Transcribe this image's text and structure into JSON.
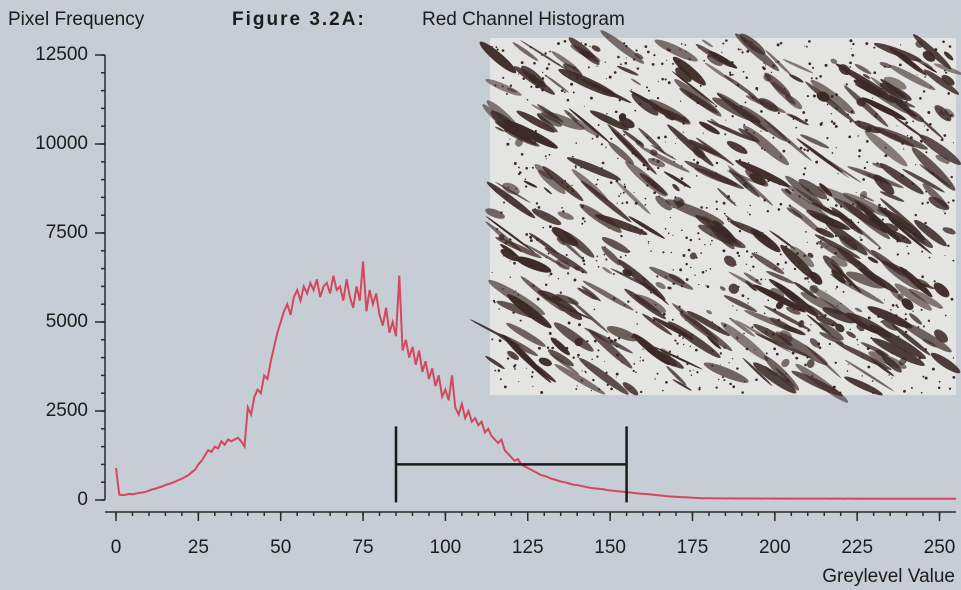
{
  "chart_data": {
    "type": "line",
    "figure_label": "Figure 3.2A:",
    "title": "Red Channel Histogram",
    "ylabel": "Pixel Frequency",
    "xlabel": "Greylevel Value",
    "x": [
      0,
      1,
      2,
      3,
      4,
      5,
      6,
      7,
      8,
      9,
      10,
      11,
      12,
      13,
      14,
      15,
      16,
      17,
      18,
      19,
      20,
      21,
      22,
      23,
      24,
      25,
      26,
      27,
      28,
      29,
      30,
      31,
      32,
      33,
      34,
      35,
      36,
      37,
      38,
      39,
      40,
      41,
      42,
      43,
      44,
      45,
      46,
      47,
      48,
      49,
      50,
      51,
      52,
      53,
      54,
      55,
      56,
      57,
      58,
      59,
      60,
      61,
      62,
      63,
      64,
      65,
      66,
      67,
      68,
      69,
      70,
      71,
      72,
      73,
      74,
      75,
      76,
      77,
      78,
      79,
      80,
      81,
      82,
      83,
      84,
      85,
      86,
      87,
      88,
      89,
      90,
      91,
      92,
      93,
      94,
      95,
      96,
      97,
      98,
      99,
      100,
      101,
      102,
      103,
      104,
      105,
      106,
      107,
      108,
      109,
      110,
      111,
      112,
      113,
      114,
      115,
      116,
      117,
      118,
      119,
      120,
      121,
      122,
      123,
      124,
      125,
      126,
      127,
      128,
      129,
      130,
      131,
      132,
      133,
      134,
      135,
      136,
      137,
      138,
      139,
      140,
      141,
      142,
      143,
      144,
      145,
      146,
      147,
      148,
      149,
      150,
      151,
      152,
      153,
      154,
      155,
      156,
      157,
      158,
      159,
      160,
      161,
      162,
      163,
      164,
      165,
      166,
      167,
      168,
      169,
      170,
      171,
      172,
      173,
      174,
      175,
      176,
      177,
      178,
      179,
      180,
      181,
      182,
      183,
      184,
      185,
      186,
      187,
      188,
      189,
      190,
      191,
      192,
      193,
      194,
      195,
      196,
      197,
      198,
      199,
      200,
      201,
      202,
      203,
      204,
      205,
      206,
      207,
      208,
      209,
      210,
      211,
      212,
      213,
      214,
      215,
      216,
      217,
      218,
      219,
      220,
      221,
      222,
      223,
      224,
      225,
      226,
      227,
      228,
      229,
      230,
      231,
      232,
      233,
      234,
      235,
      236,
      237,
      238,
      239,
      240,
      241,
      242,
      243,
      244,
      245,
      246,
      247,
      248,
      249,
      250,
      251,
      252,
      253,
      254,
      255
    ],
    "series": [
      {
        "color": "#d4485e",
        "values": [
          900,
          150,
          140,
          150,
          170,
          160,
          180,
          200,
          210,
          230,
          260,
          300,
          320,
          350,
          380,
          420,
          450,
          480,
          520,
          560,
          600,
          650,
          700,
          780,
          850,
          1000,
          1100,
          1250,
          1400,
          1350,
          1500,
          1450,
          1650,
          1550,
          1700,
          1650,
          1700,
          1750,
          1650,
          1500,
          2600,
          2400,
          2900,
          3100,
          3000,
          3500,
          3400,
          3900,
          4300,
          4700,
          5000,
          5300,
          5500,
          5200,
          5700,
          5900,
          5600,
          6000,
          5800,
          6100,
          5900,
          6200,
          5700,
          6000,
          6100,
          5800,
          6300,
          5900,
          6000,
          5600,
          6200,
          5700,
          5400,
          6000,
          5600,
          6700,
          5300,
          5900,
          5500,
          5800,
          5200,
          4900,
          5400,
          4700,
          5000,
          4600,
          6300,
          4200,
          4500,
          4000,
          4300,
          3800,
          4200,
          3600,
          3900,
          3400,
          3700,
          3200,
          3500,
          2900,
          3100,
          2800,
          3500,
          2600,
          2400,
          2700,
          2300,
          2500,
          2200,
          2300,
          2100,
          2200,
          1900,
          2000,
          1800,
          1700,
          1600,
          1700,
          1400,
          1300,
          1200,
          1100,
          1150,
          1000,
          950,
          900,
          850,
          800,
          750,
          700,
          680,
          650,
          600,
          580,
          550,
          520,
          500,
          480,
          450,
          430,
          420,
          400,
          380,
          360,
          340,
          330,
          320,
          310,
          300,
          280,
          270,
          260,
          250,
          240,
          230,
          220,
          210,
          200,
          190,
          180,
          170,
          165,
          160,
          150,
          140,
          130,
          120,
          110,
          100,
          95,
          90,
          85,
          80,
          75,
          70,
          65,
          60,
          55,
          50,
          50,
          48,
          45,
          47,
          44,
          46,
          43,
          45,
          44,
          42,
          44,
          43,
          42,
          44,
          41,
          43,
          42,
          40,
          42,
          41,
          40,
          41,
          40,
          42,
          40,
          39,
          41,
          40,
          39,
          40,
          38,
          40,
          39,
          38,
          40,
          39,
          38,
          39,
          37,
          38,
          39,
          38,
          37,
          39,
          38,
          37,
          38,
          36,
          38,
          37,
          36,
          37,
          38,
          36,
          37,
          36,
          35,
          37,
          36,
          35,
          36,
          35,
          36,
          35,
          34,
          36,
          35,
          34,
          35,
          34,
          35,
          34,
          35,
          34,
          33,
          34,
          35
        ]
      }
    ],
    "xlim": [
      0,
      255
    ],
    "xticks": [
      0,
      25,
      50,
      75,
      100,
      125,
      150,
      175,
      200,
      225,
      250
    ],
    "ylim": [
      0,
      12500
    ],
    "yticks": [
      0,
      2500,
      5000,
      7500,
      10000,
      12500
    ],
    "range_marker": {
      "x": [
        85,
        155
      ],
      "y": 1000
    }
  }
}
